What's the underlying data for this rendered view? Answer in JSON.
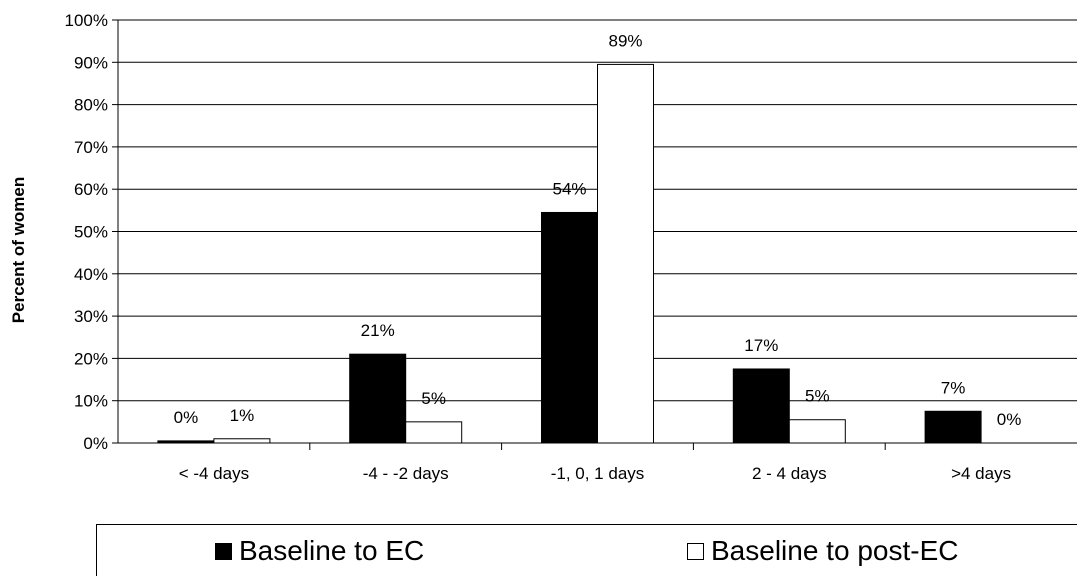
{
  "chart_data": {
    "type": "bar",
    "categories": [
      "< -4 days",
      "-4 - -2 days",
      "-1, 0, 1 days",
      "2 - 4 days",
      ">4 days"
    ],
    "series": [
      {
        "name": "Baseline to EC",
        "values": [
          0.5,
          21,
          54.5,
          17.5,
          7.5
        ],
        "labels": [
          "0%",
          "21%",
          "54%",
          "17%",
          "7%"
        ],
        "color": "#000000"
      },
      {
        "name": "Baseline to post-EC",
        "values": [
          1,
          5,
          89.5,
          5.5,
          0
        ],
        "labels": [
          "1%",
          "5%",
          "89%",
          "5%",
          "0%"
        ],
        "color": "#ffffff"
      }
    ],
    "ylabel": "Percent  of  women",
    "xlabel": "",
    "ylim": [
      0,
      100
    ],
    "yticks": [
      "0%",
      "10%",
      "20%",
      "30%",
      "40%",
      "50%",
      "60%",
      "70%",
      "80%",
      "90%",
      "100%"
    ],
    "grid": true,
    "legend": "bottom"
  }
}
